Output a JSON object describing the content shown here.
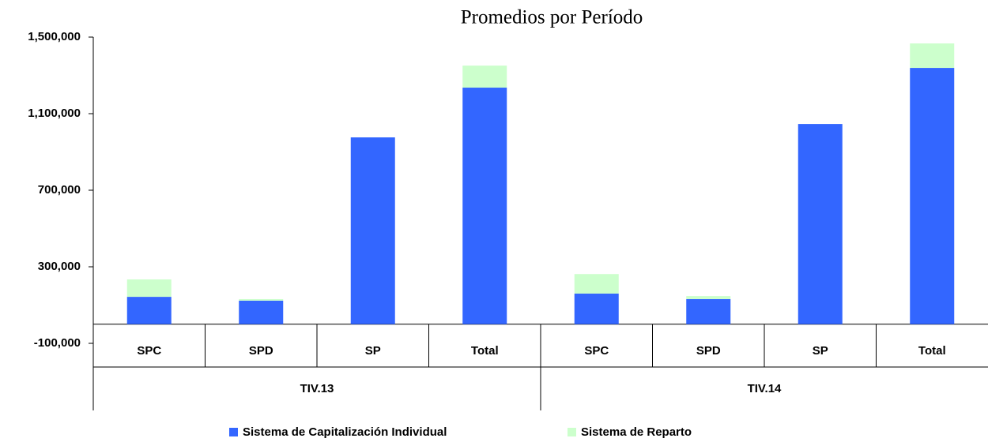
{
  "chart_data": {
    "type": "stacked_bar",
    "title": "Promedios por Período",
    "groups": [
      {
        "label": "TIV.13",
        "categories": [
          "SPC",
          "SPD",
          "SP",
          "Total"
        ]
      },
      {
        "label": "TIV.14",
        "categories": [
          "SPC",
          "SPD",
          "SP",
          "Total"
        ]
      }
    ],
    "series": [
      {
        "name": "Sistema de Capitalización Individual",
        "color": "#3366ff",
        "values": [
          143000,
          123000,
          976000,
          1236000,
          160000,
          131000,
          1046000,
          1339000
        ]
      },
      {
        "name": "Sistema de Reparto",
        "color": "#ccffcc",
        "values": [
          91000,
          8000,
          0,
          115000,
          102000,
          16000,
          0,
          128000
        ]
      }
    ],
    "ylim": [
      -100000,
      1500000
    ],
    "yticks": [
      {
        "value": -100000,
        "label": "-100,000"
      },
      {
        "value": 300000,
        "label": "300,000"
      },
      {
        "value": 700000,
        "label": "700,000"
      },
      {
        "value": 1100000,
        "label": "1,100,000"
      },
      {
        "value": 1500000,
        "label": "1,500,000"
      }
    ],
    "legend": "bottom"
  }
}
